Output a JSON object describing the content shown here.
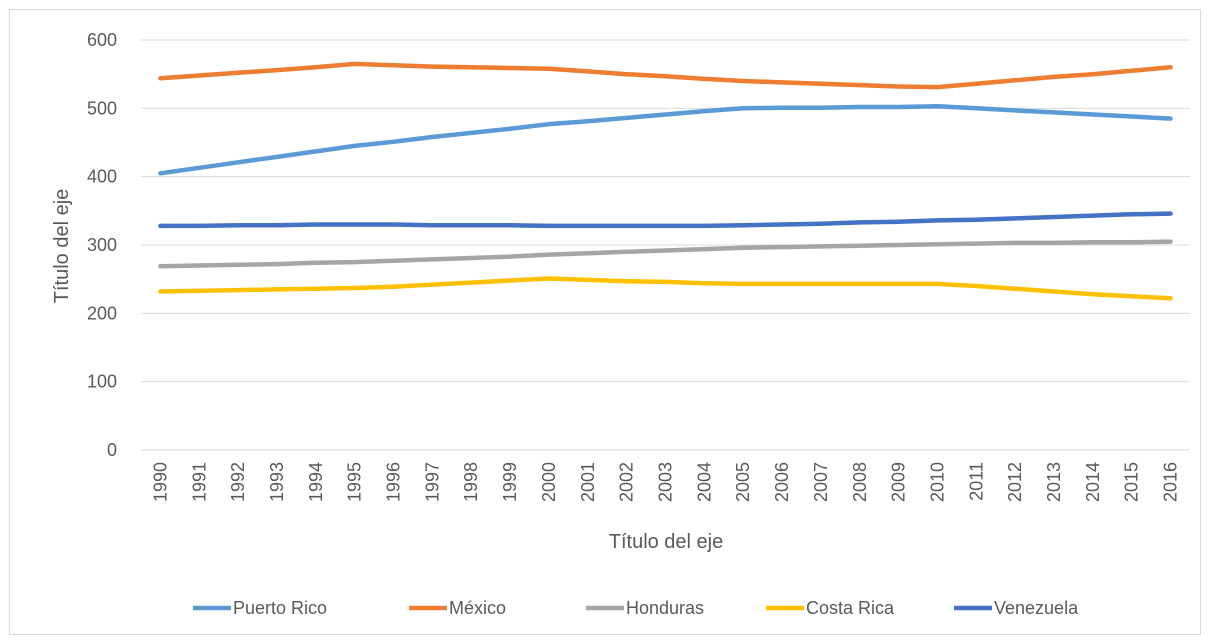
{
  "chart_data": {
    "type": "line",
    "title": "",
    "xlabel": "Título del eje",
    "ylabel": "Título del eje",
    "ylim": [
      0,
      600
    ],
    "yticks": [
      0,
      100,
      200,
      300,
      400,
      500,
      600
    ],
    "grid": true,
    "legend_position": "bottom",
    "categories": [
      "1990",
      "1991",
      "1992",
      "1993",
      "1994",
      "1995",
      "1996",
      "1997",
      "1998",
      "1999",
      "2000",
      "2001",
      "2002",
      "2003",
      "2004",
      "2005",
      "2006",
      "2007",
      "2008",
      "2009",
      "2010",
      "2011",
      "2012",
      "2013",
      "2014",
      "2015",
      "2016"
    ],
    "series": [
      {
        "name": "Puerto Rico",
        "color": "#5b9bd5",
        "values": [
          405,
          413,
          421,
          429,
          437,
          445,
          451,
          458,
          464,
          470,
          477,
          481,
          486,
          491,
          496,
          500,
          501,
          501,
          502,
          502,
          503,
          500,
          497,
          494,
          491,
          488,
          485
        ]
      },
      {
        "name": "México",
        "color": "#ed7d31",
        "values": [
          544,
          548,
          552,
          556,
          560,
          565,
          563,
          561,
          560,
          559,
          558,
          554,
          550,
          547,
          543,
          540,
          538,
          536,
          534,
          532,
          531,
          536,
          541,
          546,
          550,
          555,
          560
        ]
      },
      {
        "name": "Honduras",
        "color": "#a5a5a5",
        "values": [
          269,
          270,
          271,
          272,
          274,
          275,
          277,
          279,
          281,
          283,
          286,
          288,
          290,
          292,
          294,
          296,
          297,
          298,
          299,
          300,
          301,
          302,
          303,
          303,
          304,
          304,
          305
        ]
      },
      {
        "name": "Costa Rica",
        "color": "#ffc000",
        "values": [
          232,
          233,
          234,
          235,
          236,
          237,
          239,
          242,
          245,
          248,
          251,
          249,
          247,
          246,
          244,
          243,
          243,
          243,
          243,
          243,
          243,
          240,
          236,
          232,
          228,
          225,
          222
        ]
      },
      {
        "name": "Venezuela",
        "color": "#4472c4",
        "values": [
          328,
          328,
          329,
          329,
          330,
          330,
          330,
          329,
          329,
          329,
          328,
          328,
          328,
          328,
          328,
          329,
          330,
          331,
          333,
          334,
          336,
          337,
          339,
          341,
          343,
          345,
          346
        ]
      }
    ]
  }
}
